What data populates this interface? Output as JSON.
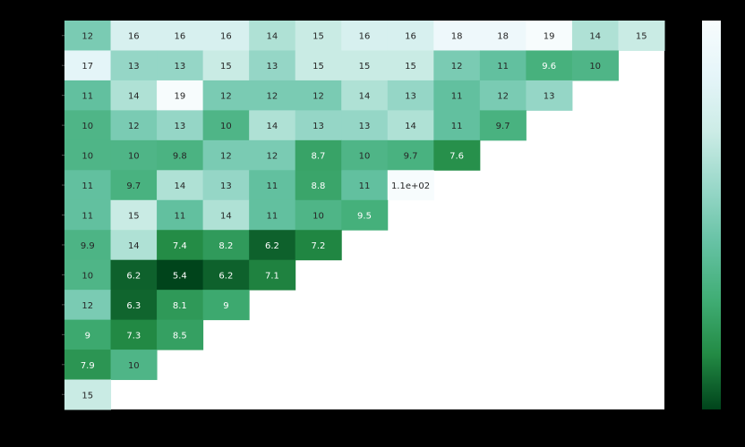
{
  "chart_data": {
    "type": "heatmap",
    "title": "",
    "xlabel": "",
    "ylabel": "",
    "rows": 13,
    "cols": 13,
    "colorbar": {
      "min": 5.4,
      "max": 19,
      "colormap": "BuGn_r"
    },
    "colormap_stops": [
      "#00441b",
      "#238b45",
      "#41ae76",
      "#66c2a4",
      "#99d8c9",
      "#ccece6",
      "#e5f5f9",
      "#f7fcfd"
    ],
    "values": [
      [
        12,
        16,
        16,
        16,
        14,
        15,
        16,
        16,
        18,
        18,
        19,
        14,
        15
      ],
      [
        17,
        13,
        13,
        15,
        13,
        15,
        15,
        15,
        12,
        11,
        9.6,
        10
      ],
      [
        11,
        14,
        19,
        12,
        12,
        12,
        14,
        13,
        11,
        12,
        13
      ],
      [
        10,
        12,
        13,
        10,
        14,
        13,
        13,
        14,
        11,
        9.7
      ],
      [
        10,
        10,
        9.8,
        12,
        12,
        8.7,
        10,
        9.7,
        7.6
      ],
      [
        11,
        9.7,
        14,
        13,
        11,
        8.8,
        11,
        110
      ],
      [
        11,
        15,
        11,
        14,
        11,
        10,
        9.5
      ],
      [
        9.9,
        14,
        7.4,
        8.2,
        6.2,
        7.2
      ],
      [
        10,
        6.2,
        5.4,
        6.2,
        7.1
      ],
      [
        12,
        6.3,
        8.1,
        9
      ],
      [
        9,
        7.3,
        8.5
      ],
      [
        7.9,
        10
      ],
      [
        15
      ]
    ],
    "labels": [
      [
        "12",
        "16",
        "16",
        "16",
        "14",
        "15",
        "16",
        "16",
        "18",
        "18",
        "19",
        "14",
        "15"
      ],
      [
        "17",
        "13",
        "13",
        "15",
        "13",
        "15",
        "15",
        "15",
        "12",
        "11",
        "9.6",
        "10"
      ],
      [
        "11",
        "14",
        "19",
        "12",
        "12",
        "12",
        "14",
        "13",
        "11",
        "12",
        "13"
      ],
      [
        "10",
        "12",
        "13",
        "10",
        "14",
        "13",
        "13",
        "14",
        "11",
        "9.7"
      ],
      [
        "10",
        "10",
        "9.8",
        "12",
        "12",
        "8.7",
        "10",
        "9.7",
        "7.6"
      ],
      [
        "11",
        "9.7",
        "14",
        "13",
        "11",
        "8.8",
        "11",
        "1.1e+02"
      ],
      [
        "11",
        "15",
        "11",
        "14",
        "11",
        "10",
        "9.5"
      ],
      [
        "9.9",
        "14",
        "7.4",
        "8.2",
        "6.2",
        "7.2"
      ],
      [
        "10",
        "6.2",
        "5.4",
        "6.2",
        "7.1"
      ],
      [
        "12",
        "6.3",
        "8.1",
        "9"
      ],
      [
        "9",
        "7.3",
        "8.5"
      ],
      [
        "7.9",
        "10"
      ],
      [
        "15"
      ]
    ]
  }
}
